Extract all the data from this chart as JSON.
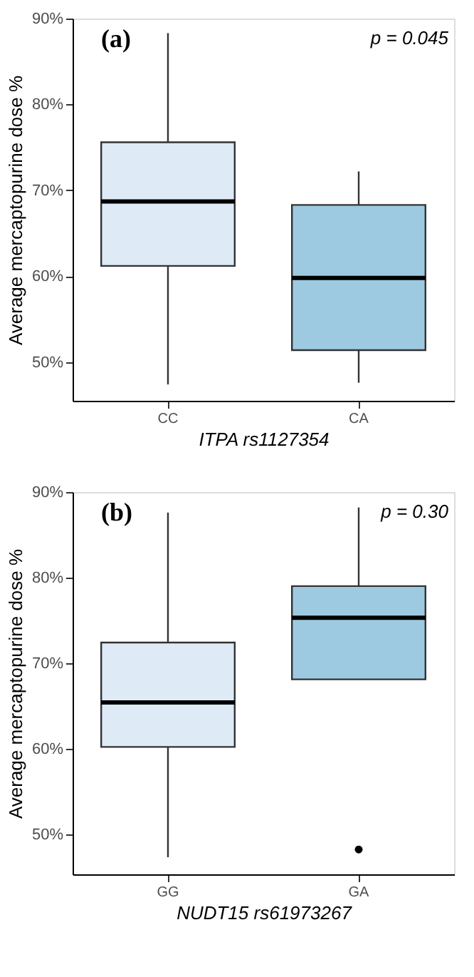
{
  "chart_data": [
    {
      "type": "box",
      "categories": [
        "CC",
        "CA"
      ],
      "xlabel": "ITPA rs1127354",
      "ylabel": "Average mercaptopurine dose %",
      "ylim": [
        45.5,
        90
      ],
      "yticks": [
        {
          "value": 50,
          "label": "50%"
        },
        {
          "value": 60,
          "label": "60%"
        },
        {
          "value": 70,
          "label": "70%"
        },
        {
          "value": 80,
          "label": "80%"
        },
        {
          "value": 90,
          "label": "90%"
        }
      ],
      "colors": [
        "#deebf7",
        "#9ecae1"
      ],
      "boxes": [
        {
          "low": 47.4,
          "q1": 61.2,
          "median": 68.7,
          "q3": 75.6,
          "high": 88.3
        },
        {
          "low": 47.6,
          "q1": 51.4,
          "median": 59.8,
          "q3": 68.3,
          "high": 72.2
        }
      ],
      "annotations": [
        "(a)",
        "p = 0.045"
      ]
    },
    {
      "type": "box",
      "categories": [
        "GG",
        "GA"
      ],
      "xlabel": "NUDT15 rs61973267",
      "ylabel": "Average mercaptopurine dose %",
      "ylim": [
        45.3,
        90
      ],
      "yticks": [
        {
          "value": 50,
          "label": "50%"
        },
        {
          "value": 60,
          "label": "60%"
        },
        {
          "value": 70,
          "label": "70%"
        },
        {
          "value": 80,
          "label": "80%"
        },
        {
          "value": 90,
          "label": "90%"
        }
      ],
      "colors": [
        "#deebf7",
        "#9ecae1"
      ],
      "boxes": [
        {
          "low": 47.3,
          "q1": 60.2,
          "median": 65.4,
          "q3": 72.4,
          "high": 87.6
        },
        {
          "low": 68.1,
          "q1": 68.1,
          "median": 75.3,
          "q3": 79.0,
          "high": 88.2,
          "outliers": [
            48.2
          ]
        }
      ],
      "annotations": [
        "(b)",
        "p = 0.30"
      ]
    }
  ]
}
